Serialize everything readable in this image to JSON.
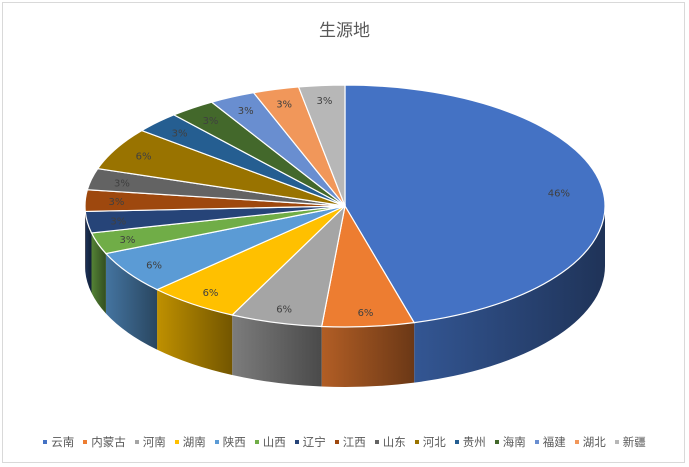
{
  "chart_data": {
    "type": "pie",
    "title": "生源地",
    "categories": [
      "云南",
      "内蒙古",
      "河南",
      "湖南",
      "陕西",
      "山西",
      "辽宁",
      "江西",
      "山东",
      "河北",
      "贵州",
      "海南",
      "福建",
      "湖北",
      "新疆"
    ],
    "values": [
      16,
      2,
      2,
      2,
      2,
      1,
      1,
      1,
      1,
      2,
      1,
      1,
      1,
      1,
      1
    ],
    "data_labels": [
      "46%",
      "6%",
      "6%",
      "6%",
      "6%",
      "3%",
      "3%",
      "3%",
      "3%",
      "6%",
      "3%",
      "3%",
      "3%",
      "3%",
      "3%"
    ],
    "colors": [
      "#4472c4",
      "#ed7d31",
      "#a5a5a5",
      "#ffc000",
      "#5b9bd5",
      "#70ad47",
      "#264478",
      "#9e480e",
      "#636363",
      "#997300",
      "#255e91",
      "#43682b",
      "#698ed0",
      "#f1975a",
      "#b7b7b7"
    ],
    "style": "3d",
    "legend_position": "bottom"
  }
}
